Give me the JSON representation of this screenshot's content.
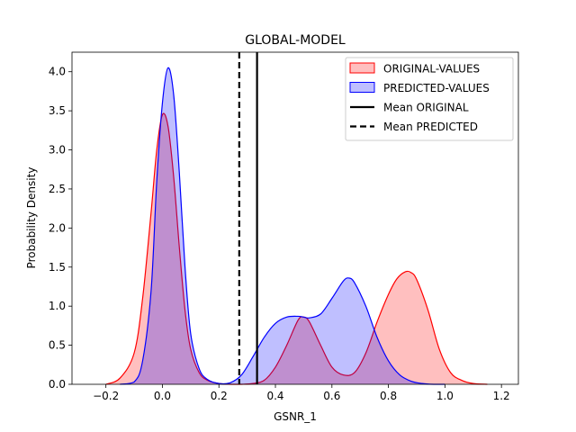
{
  "chart_data": {
    "type": "area",
    "title": "GLOBAL-MODEL",
    "xlabel": "GSNR_1",
    "ylabel": "Probability Density",
    "xlim": [
      -0.32,
      1.26
    ],
    "ylim": [
      0,
      4.25
    ],
    "xticks": [
      -0.2,
      0.0,
      0.2,
      0.4,
      0.6,
      0.8,
      1.0,
      1.2
    ],
    "xtick_labels": [
      "−0.2",
      "0.0",
      "0.2",
      "0.4",
      "0.6",
      "0.8",
      "1.0",
      "1.2"
    ],
    "yticks": [
      0.0,
      0.5,
      1.0,
      1.5,
      2.0,
      2.5,
      3.0,
      3.5,
      4.0
    ],
    "ytick_labels": [
      "0.0",
      "0.5",
      "1.0",
      "1.5",
      "2.0",
      "2.5",
      "3.0",
      "3.5",
      "4.0"
    ],
    "grid": false,
    "legend_position": "top-right",
    "series": [
      {
        "name": "ORIGINAL-VALUES",
        "color": "#ff0000",
        "fill": "#ff0000",
        "x": [
          -0.2,
          -0.15,
          -0.1,
          -0.07,
          -0.04,
          -0.02,
          0.0,
          0.02,
          0.04,
          0.06,
          0.08,
          0.1,
          0.13,
          0.16,
          0.2,
          0.24,
          0.28,
          0.32,
          0.36,
          0.4,
          0.44,
          0.48,
          0.5,
          0.52,
          0.56,
          0.6,
          0.64,
          0.68,
          0.72,
          0.76,
          0.8,
          0.83,
          0.86,
          0.88,
          0.9,
          0.94,
          0.98,
          1.02,
          1.06,
          1.1,
          1.15
        ],
        "y": [
          0.0,
          0.08,
          0.4,
          1.1,
          2.2,
          3.0,
          3.45,
          3.3,
          2.65,
          1.75,
          0.95,
          0.45,
          0.15,
          0.05,
          0.01,
          0.0,
          0.0,
          0.01,
          0.05,
          0.22,
          0.5,
          0.82,
          0.86,
          0.8,
          0.5,
          0.22,
          0.12,
          0.15,
          0.4,
          0.8,
          1.15,
          1.35,
          1.44,
          1.43,
          1.34,
          0.95,
          0.45,
          0.15,
          0.05,
          0.01,
          0.0
        ]
      },
      {
        "name": "PREDICTED-VALUES",
        "color": "#0000ff",
        "fill": "#0000ff",
        "x": [
          -0.15,
          -0.1,
          -0.07,
          -0.04,
          -0.02,
          0.0,
          0.02,
          0.04,
          0.06,
          0.08,
          0.1,
          0.13,
          0.16,
          0.2,
          0.24,
          0.28,
          0.32,
          0.36,
          0.4,
          0.44,
          0.48,
          0.5,
          0.52,
          0.56,
          0.6,
          0.64,
          0.66,
          0.68,
          0.72,
          0.76,
          0.8,
          0.84,
          0.88,
          0.92,
          0.96,
          1.0
        ],
        "y": [
          0.0,
          0.03,
          0.3,
          1.2,
          2.6,
          3.6,
          4.05,
          3.7,
          2.7,
          1.5,
          0.65,
          0.2,
          0.06,
          0.01,
          0.02,
          0.12,
          0.35,
          0.6,
          0.78,
          0.86,
          0.87,
          0.86,
          0.85,
          0.9,
          1.1,
          1.32,
          1.36,
          1.3,
          1.0,
          0.6,
          0.3,
          0.12,
          0.04,
          0.01,
          0.0,
          0.0
        ]
      }
    ],
    "vlines": [
      {
        "name": "Mean ORIGINAL",
        "x": 0.335,
        "style": "solid",
        "color": "#000000"
      },
      {
        "name": "Mean PREDICTED",
        "x": 0.272,
        "style": "dashed",
        "color": "#000000"
      }
    ]
  }
}
